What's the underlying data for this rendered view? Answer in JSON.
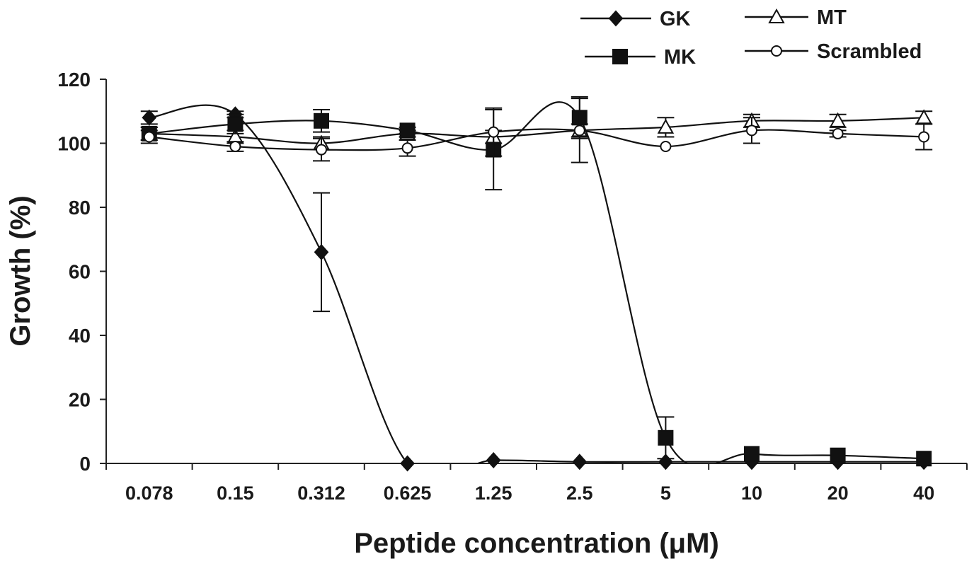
{
  "chart_data": {
    "type": "line",
    "xlabel": "Peptide concentration (μM)",
    "ylabel": "Growth (%)",
    "categories": [
      "0.078",
      "0.15",
      "0.312",
      "0.625",
      "1.25",
      "2.5",
      "5",
      "10",
      "20",
      "40"
    ],
    "ylim": [
      0,
      120
    ],
    "yticks": [
      0,
      20,
      40,
      60,
      80,
      100,
      120
    ],
    "grid": false,
    "legend_position": "top-right",
    "series": [
      {
        "name": "GK",
        "marker": "diamond-filled",
        "values": [
          108,
          109,
          66,
          0,
          1,
          0.5,
          0.5,
          0.5,
          0.5,
          0.5
        ],
        "errors": [
          2,
          1,
          18.5,
          0,
          0,
          0,
          0,
          0,
          0,
          0
        ]
      },
      {
        "name": "MT",
        "marker": "triangle-open",
        "values": [
          103,
          102,
          100,
          103,
          102,
          104,
          105,
          107,
          107,
          108
        ],
        "errors": [
          2,
          2,
          2,
          1,
          2,
          2,
          3,
          2,
          2,
          2
        ]
      },
      {
        "name": "MK",
        "marker": "square-filled",
        "values": [
          103,
          106,
          107,
          104,
          98,
          108,
          8,
          3,
          2.5,
          1.5
        ],
        "errors": [
          2,
          3,
          3.5,
          1,
          12.5,
          6.5,
          6.5,
          0,
          0,
          0
        ]
      },
      {
        "name": "Scrambled",
        "marker": "circle-open",
        "values": [
          102,
          99,
          98,
          98.5,
          103.5,
          104,
          99,
          104,
          103,
          102
        ],
        "errors": [
          2,
          1.5,
          3.5,
          2.5,
          7.5,
          10,
          0,
          4,
          1,
          4
        ]
      }
    ]
  }
}
